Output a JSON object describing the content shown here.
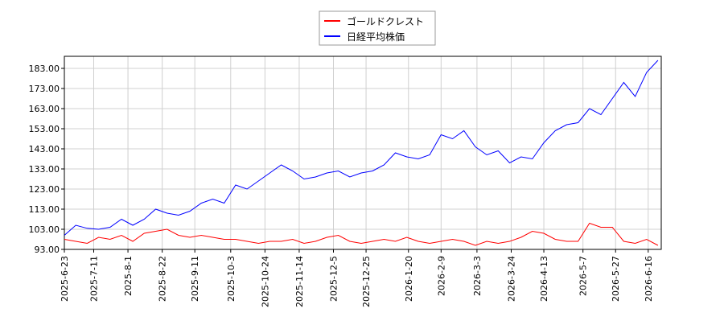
{
  "chart_data": {
    "type": "line",
    "x": [
      "2025-6-23",
      "2025-6-30",
      "2025-7-7",
      "2025-7-14",
      "2025-7-21",
      "2025-7-28",
      "2025-8-4",
      "2025-8-11",
      "2025-8-18",
      "2025-8-25",
      "2025-9-1",
      "2025-9-8",
      "2025-9-15",
      "2025-9-22",
      "2025-9-29",
      "2025-10-6",
      "2025-10-13",
      "2025-10-20",
      "2025-10-27",
      "2025-11-3",
      "2025-11-10",
      "2025-11-17",
      "2025-11-24",
      "2025-12-1",
      "2025-12-8",
      "2025-12-15",
      "2025-12-22",
      "2025-12-29",
      "2026-1-5",
      "2026-1-12",
      "2026-1-19",
      "2026-1-26",
      "2026-2-2",
      "2026-2-9",
      "2026-2-16",
      "2026-2-23",
      "2026-3-2",
      "2026-3-9",
      "2026-3-16",
      "2026-3-23",
      "2026-3-30",
      "2026-4-6",
      "2026-4-13",
      "2026-4-20",
      "2026-4-27",
      "2026-5-4",
      "2026-5-11",
      "2026-5-18",
      "2026-5-25",
      "2026-6-1",
      "2026-6-8",
      "2026-6-15",
      "2026-6-22"
    ],
    "series": [
      {
        "name": "ゴールドクレスト",
        "color": "#ff0000",
        "values": [
          98,
          97,
          96,
          99,
          98,
          100,
          97,
          101,
          102,
          103,
          100,
          99,
          100,
          99,
          98,
          98,
          97,
          96,
          97,
          97,
          98,
          96,
          97,
          99,
          100,
          97,
          96,
          97,
          98,
          97,
          99,
          97,
          96,
          97,
          98,
          97,
          95,
          97,
          96,
          97,
          99,
          102,
          101,
          98,
          97,
          97,
          106,
          104,
          104,
          97,
          96,
          98,
          95
        ]
      },
      {
        "name": "日経平均株価",
        "color": "#0000ff",
        "values": [
          100,
          105,
          103.5,
          103,
          104,
          108,
          105,
          108,
          113,
          111,
          110,
          112,
          116,
          118,
          116,
          125,
          123,
          127,
          131,
          135,
          132,
          128,
          129,
          131,
          132,
          129,
          131,
          132,
          135,
          141,
          139,
          138,
          140,
          150,
          148,
          152,
          144,
          140,
          142,
          136,
          139,
          138,
          146,
          152,
          155,
          156,
          163,
          160,
          168,
          176,
          169,
          181,
          187
        ]
      }
    ],
    "xlim": [
      "2025-6-23",
      "2026-6-24"
    ],
    "xticks": [
      "2025-6-23",
      "2025-7-11",
      "2025-8-1",
      "2025-8-22",
      "2025-9-11",
      "2025-10-3",
      "2025-10-24",
      "2025-11-14",
      "2025-12-5",
      "2025-12-25",
      "2026-1-20",
      "2026-2-9",
      "2026-3-3",
      "2026-3-24",
      "2026-4-13",
      "2026-5-7",
      "2026-5-27",
      "2026-6-16"
    ],
    "ylim": [
      93,
      189
    ],
    "yticks": [
      {
        "value": 93,
        "label": "93.00"
      },
      {
        "value": 103,
        "label": "103.00"
      },
      {
        "value": 113,
        "label": "113.00"
      },
      {
        "value": 123,
        "label": "123.00"
      },
      {
        "value": 133,
        "label": "133.00"
      },
      {
        "value": 143,
        "label": "143.00"
      },
      {
        "value": 153,
        "label": "153.00"
      },
      {
        "value": 163,
        "label": "163.00"
      },
      {
        "value": 173,
        "label": "173.00"
      },
      {
        "value": 183,
        "label": "183.00"
      }
    ],
    "grid": true,
    "legend": "top"
  }
}
